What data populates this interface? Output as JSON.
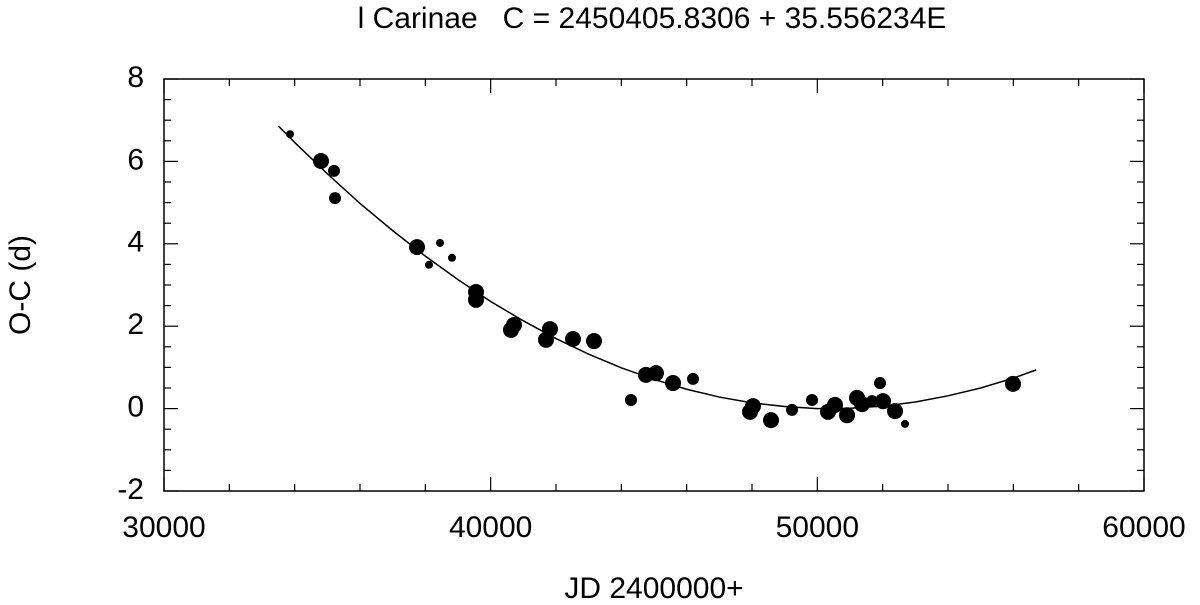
{
  "chart_data": {
    "type": "scatter",
    "title": "l Carinae   C = 2450405.8306 + 35.556234E",
    "x_label": "JD 2400000+",
    "y_label": "O-C (d)",
    "xlim": [
      30000,
      60000
    ],
    "ylim": [
      -2,
      8
    ],
    "xticks": [
      30000,
      40000,
      50000,
      60000
    ],
    "yticks": [
      -2,
      0,
      2,
      4,
      6,
      8
    ],
    "series": [
      {
        "color": "#000000",
        "x": [
          33857,
          34806,
          35204,
          35235,
          37745,
          38449,
          38112,
          38816,
          39551,
          39551,
          40622,
          40714,
          41816,
          41694,
          42520,
          43163,
          44296,
          44755,
          45061,
          45582,
          46194,
          47939,
          48031,
          48582,
          49225,
          49837,
          50327,
          50541,
          50909,
          51215,
          51368,
          51674,
          51919,
          52011,
          52378,
          52684,
          55990
        ],
        "values": [
          6.66,
          6.01,
          5.77,
          5.11,
          3.92,
          4.02,
          3.49,
          3.66,
          2.83,
          2.64,
          1.91,
          2.03,
          1.93,
          1.67,
          1.69,
          1.64,
          0.21,
          0.82,
          0.86,
          0.62,
          0.72,
          -0.08,
          0.06,
          -0.28,
          -0.03,
          0.21,
          -0.08,
          0.09,
          -0.16,
          0.26,
          0.11,
          0.18,
          0.62,
          0.18,
          -0.06,
          -0.37,
          0.6
        ],
        "sizes": [
          1,
          3,
          2,
          2,
          3,
          1,
          1,
          1,
          3,
          3,
          3,
          3,
          3,
          3,
          3,
          3,
          2,
          3,
          3,
          3,
          2,
          3,
          3,
          3,
          2,
          2,
          3,
          3,
          3,
          3,
          3,
          2,
          2,
          3,
          3,
          1,
          3
        ]
      }
    ],
    "fit": {
      "color": "#000000",
      "x": [
        33500,
        34000,
        35000,
        36000,
        37000,
        38000,
        39000,
        40000,
        41000,
        42000,
        43000,
        44000,
        45000,
        46000,
        47000,
        48000,
        49000,
        50000,
        51000,
        52000,
        53000,
        54000,
        55000,
        56000,
        56700
      ],
      "values": [
        6.86,
        6.46,
        5.7,
        4.98,
        4.32,
        3.7,
        3.13,
        2.6,
        2.13,
        1.7,
        1.32,
        0.99,
        0.71,
        0.47,
        0.28,
        0.14,
        0.05,
        0.0,
        0.01,
        0.06,
        0.16,
        0.31,
        0.5,
        0.74,
        0.94
      ]
    }
  }
}
